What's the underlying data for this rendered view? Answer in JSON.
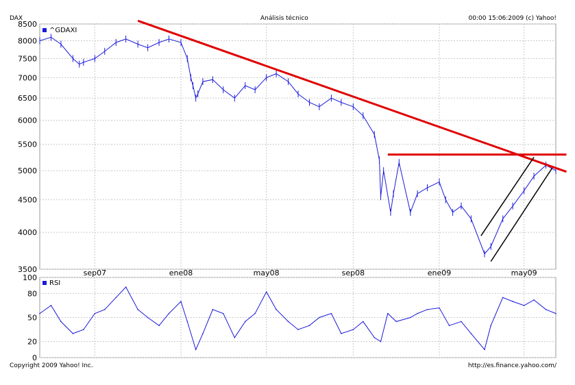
{
  "header": {
    "left": "DAX",
    "center": "Análisis técnico",
    "right": "00:00 15:06:2009 (c) Yahoo!"
  },
  "footer": {
    "left": "Copyright 2009 Yahoo! Inc.",
    "right": "http://es.finance.yahoo.com/"
  },
  "colors": {
    "price": "#1a1adb",
    "rsi": "#1a1adb",
    "trend": "#e00000",
    "channel": "#000000",
    "grid": "#c8c8c8"
  },
  "chart_data": [
    {
      "type": "line",
      "panel": "price",
      "scale": "log",
      "ylim": [
        3500,
        8500
      ],
      "yticks": [
        3500,
        4000,
        4500,
        5000,
        5500,
        6000,
        6500,
        7000,
        7500,
        8000,
        8500
      ],
      "xlim": [
        "2007-06-15",
        "2009-06-15"
      ],
      "xticks": [
        {
          "date": "2007-09-01",
          "label": "sep07"
        },
        {
          "date": "2008-01-01",
          "label": "ene08"
        },
        {
          "date": "2008-05-01",
          "label": "may08"
        },
        {
          "date": "2008-09-01",
          "label": "sep08"
        },
        {
          "date": "2009-01-01",
          "label": "ene09"
        },
        {
          "date": "2009-05-01",
          "label": "may09"
        }
      ],
      "legend": "^GDAXI",
      "grid": true,
      "series": [
        {
          "name": "^GDAXI",
          "x": [
            "2007-06-15",
            "2007-07-01",
            "2007-07-15",
            "2007-08-01",
            "2007-08-10",
            "2007-08-16",
            "2007-09-01",
            "2007-09-15",
            "2007-10-01",
            "2007-10-15",
            "2007-11-01",
            "2007-11-15",
            "2007-12-01",
            "2007-12-15",
            "2008-01-01",
            "2008-01-10",
            "2008-01-15",
            "2008-01-18",
            "2008-01-22",
            "2008-01-25",
            "2008-02-01",
            "2008-02-15",
            "2008-03-01",
            "2008-03-17",
            "2008-04-01",
            "2008-04-15",
            "2008-05-01",
            "2008-05-15",
            "2008-06-01",
            "2008-06-15",
            "2008-07-01",
            "2008-07-15",
            "2008-08-01",
            "2008-08-15",
            "2008-09-01",
            "2008-09-15",
            "2008-10-01",
            "2008-10-08",
            "2008-10-10",
            "2008-10-14",
            "2008-10-24",
            "2008-10-28",
            "2008-11-05",
            "2008-11-21",
            "2008-12-01",
            "2008-12-15",
            "2009-01-01",
            "2009-01-10",
            "2009-01-20",
            "2009-02-01",
            "2009-02-15",
            "2009-03-06",
            "2009-03-15",
            "2009-04-01",
            "2009-04-15",
            "2009-05-01",
            "2009-05-15",
            "2009-06-01",
            "2009-06-15"
          ],
          "values": [
            8000,
            8100,
            7900,
            7500,
            7350,
            7400,
            7500,
            7700,
            7950,
            8050,
            7900,
            7800,
            7950,
            8050,
            7950,
            7500,
            7000,
            6800,
            6500,
            6600,
            6900,
            6950,
            6700,
            6500,
            6800,
            6700,
            7000,
            7100,
            6900,
            6600,
            6400,
            6300,
            6500,
            6400,
            6300,
            6100,
            5700,
            5200,
            4550,
            5000,
            4300,
            4600,
            5150,
            4300,
            4600,
            4700,
            4800,
            4500,
            4300,
            4400,
            4200,
            3700,
            3800,
            4200,
            4400,
            4650,
            4900,
            5100,
            5000
          ]
        }
      ],
      "annotations": [
        {
          "type": "trendline",
          "color": "red",
          "from": [
            "2007-11-01",
            8600
          ],
          "to": [
            "2009-06-30",
            4980
          ]
        },
        {
          "type": "horizontal",
          "color": "red",
          "y": 5300,
          "from": "2008-10-20",
          "to": "2009-06-30"
        },
        {
          "type": "channel-line",
          "color": "black",
          "from": [
            "2009-03-01",
            3950
          ],
          "to": [
            "2009-05-15",
            5250
          ]
        },
        {
          "type": "channel-line",
          "color": "black",
          "from": [
            "2009-03-15",
            3600
          ],
          "to": [
            "2009-06-10",
            5050
          ]
        }
      ]
    },
    {
      "type": "line",
      "panel": "rsi",
      "ylim": [
        0,
        100
      ],
      "yticks": [
        0,
        20,
        50,
        80,
        100
      ],
      "legend": "RSI",
      "grid": true,
      "series": [
        {
          "name": "RSI",
          "x": [
            "2007-06-15",
            "2007-07-01",
            "2007-07-15",
            "2007-08-01",
            "2007-08-16",
            "2007-09-01",
            "2007-09-15",
            "2007-10-01",
            "2007-10-15",
            "2007-11-01",
            "2007-11-15",
            "2007-12-01",
            "2007-12-15",
            "2008-01-01",
            "2008-01-10",
            "2008-01-22",
            "2008-02-01",
            "2008-02-15",
            "2008-03-01",
            "2008-03-17",
            "2008-04-01",
            "2008-04-15",
            "2008-05-01",
            "2008-05-15",
            "2008-06-01",
            "2008-06-15",
            "2008-07-01",
            "2008-07-15",
            "2008-08-01",
            "2008-08-15",
            "2008-09-01",
            "2008-09-15",
            "2008-10-01",
            "2008-10-10",
            "2008-10-20",
            "2008-11-01",
            "2008-11-21",
            "2008-12-01",
            "2008-12-15",
            "2009-01-01",
            "2009-01-15",
            "2009-02-01",
            "2009-02-15",
            "2009-03-06",
            "2009-03-15",
            "2009-04-01",
            "2009-04-15",
            "2009-05-01",
            "2009-05-15",
            "2009-06-01",
            "2009-06-15"
          ],
          "values": [
            55,
            65,
            45,
            30,
            35,
            55,
            60,
            75,
            88,
            60,
            50,
            40,
            55,
            70,
            45,
            10,
            30,
            60,
            55,
            25,
            45,
            55,
            82,
            60,
            45,
            35,
            40,
            50,
            55,
            30,
            35,
            45,
            25,
            20,
            55,
            45,
            50,
            55,
            60,
            62,
            40,
            45,
            30,
            10,
            40,
            75,
            70,
            65,
            72,
            60,
            55
          ]
        }
      ]
    }
  ]
}
